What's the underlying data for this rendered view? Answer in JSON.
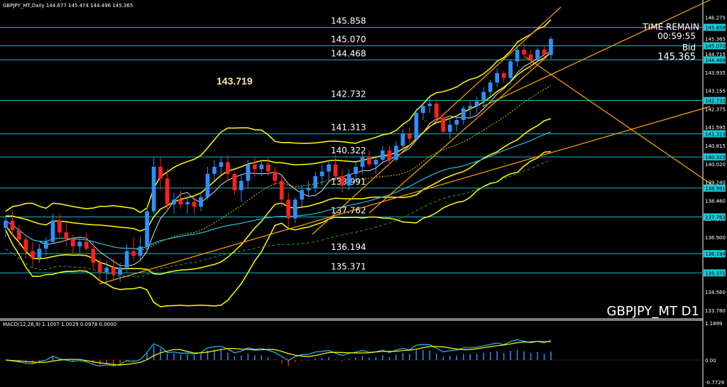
{
  "header": {
    "symbol_line": "GBPJPY_MT,Daily  144.677 145.474 144.496 145.365",
    "macd_line": "MACD(12,26,9) 1.1007 1.0029 0.0978 0.0000"
  },
  "panel": {
    "time_remain_label": "TIME REMAIN",
    "time_remain_value": "00:59:55",
    "bid_label": "Bid",
    "bid_value": "145.365",
    "symbol_period": "GBPJPY_MT D1",
    "highlight_price": "143.719"
  },
  "colors": {
    "level_line": "#17b8c8",
    "axis_box": "#17c9d8",
    "bull": "#2f8fff",
    "bear": "#ff2020",
    "bands": "#ffff00",
    "trend": "#ffa500",
    "ma_cyan": "#20c0e0",
    "ma_green": "#30c040",
    "highlight": "#ffe4b0"
  },
  "chart_data": {
    "type": "candlestick",
    "symbol": "GBPJPY_MT",
    "period": "Daily",
    "ohlc_last": {
      "open": 144.677,
      "high": 145.474,
      "low": 144.496,
      "close": 145.365
    },
    "levels": [
      145.858,
      145.07,
      144.468,
      142.732,
      141.313,
      140.322,
      138.991,
      137.762,
      136.194,
      135.371
    ],
    "level_labels": [
      "145.858",
      "145.070",
      "144.468",
      "142.732",
      "141.313",
      "140.322",
      "138.991",
      "137.762",
      "136.194",
      "135.371"
    ],
    "price_ticks": [
      "146.275",
      "145.365",
      "144.715",
      "143.935",
      "143.155",
      "142.375",
      "141.595",
      "140.815",
      "140.020",
      "139.240",
      "138.460",
      "137.680",
      "136.900",
      "136.120",
      "135.340",
      "134.560",
      "133.780"
    ],
    "level_axis_labels": [
      "145.858",
      "145.070",
      "144.468",
      "142.732",
      "141.313",
      "140.322",
      "138.991",
      "137.762",
      "136.194",
      "135.371"
    ],
    "macd": {
      "params": "12,26,9",
      "values": [
        1.1007,
        1.0029,
        0.0978,
        0.0
      ],
      "ticks": [
        "1.1899",
        "0.00",
        "-0.7729"
      ]
    },
    "ylim": [
      133.5,
      146.6
    ],
    "candles": [
      [
        137.3,
        137.8,
        136.9,
        137.6
      ],
      [
        137.6,
        138.0,
        137.0,
        137.2
      ],
      [
        137.2,
        137.4,
        136.5,
        136.8
      ],
      [
        136.8,
        137.0,
        136.0,
        136.3
      ],
      [
        136.3,
        136.7,
        135.6,
        136.0
      ],
      [
        136.0,
        136.6,
        135.8,
        136.4
      ],
      [
        136.4,
        136.9,
        136.1,
        136.7
      ],
      [
        136.7,
        137.9,
        136.6,
        137.6
      ],
      [
        137.6,
        137.9,
        136.9,
        137.1
      ],
      [
        137.1,
        137.5,
        136.5,
        136.8
      ],
      [
        136.8,
        137.0,
        136.2,
        136.5
      ],
      [
        136.5,
        136.9,
        136.1,
        136.7
      ],
      [
        136.7,
        137.1,
        136.3,
        136.4
      ],
      [
        136.4,
        136.7,
        135.5,
        135.8
      ],
      [
        135.8,
        136.0,
        135.0,
        135.4
      ],
      [
        135.4,
        135.9,
        134.9,
        135.6
      ],
      [
        135.6,
        136.0,
        135.1,
        135.3
      ],
      [
        135.3,
        135.8,
        135.0,
        135.6
      ],
      [
        135.6,
        136.6,
        135.4,
        136.3
      ],
      [
        136.3,
        136.9,
        135.9,
        136.1
      ],
      [
        136.1,
        136.9,
        135.9,
        136.5
      ],
      [
        136.5,
        138.2,
        136.3,
        138.0
      ],
      [
        138.0,
        140.3,
        137.9,
        139.9
      ],
      [
        139.9,
        140.3,
        138.9,
        139.4
      ],
      [
        139.4,
        139.8,
        138.0,
        138.3
      ],
      [
        138.3,
        138.8,
        137.9,
        138.5
      ],
      [
        138.5,
        138.9,
        138.1,
        138.3
      ],
      [
        138.3,
        138.7,
        137.9,
        138.4
      ],
      [
        138.4,
        138.6,
        137.9,
        138.2
      ],
      [
        138.2,
        138.8,
        138.0,
        138.6
      ],
      [
        138.6,
        139.9,
        138.5,
        139.6
      ],
      [
        139.6,
        140.2,
        139.3,
        139.9
      ],
      [
        139.9,
        140.3,
        139.6,
        140.1
      ],
      [
        140.1,
        140.4,
        139.3,
        139.6
      ],
      [
        139.6,
        139.7,
        138.7,
        138.9
      ],
      [
        138.9,
        139.6,
        138.4,
        139.3
      ],
      [
        139.3,
        140.2,
        139.0,
        140.0
      ],
      [
        140.0,
        140.3,
        139.5,
        139.8
      ],
      [
        139.8,
        140.2,
        139.5,
        140.0
      ],
      [
        140.0,
        140.3,
        139.5,
        139.7
      ],
      [
        139.7,
        139.9,
        139.1,
        139.3
      ],
      [
        139.3,
        139.5,
        138.2,
        138.5
      ],
      [
        138.5,
        138.8,
        137.3,
        137.7
      ],
      [
        137.7,
        138.6,
        137.5,
        138.5
      ],
      [
        138.5,
        139.1,
        138.2,
        138.9
      ],
      [
        138.9,
        139.3,
        138.6,
        139.0
      ],
      [
        139.0,
        139.7,
        138.8,
        139.5
      ],
      [
        139.5,
        140.0,
        139.1,
        139.7
      ],
      [
        139.7,
        140.2,
        139.3,
        140.0
      ],
      [
        140.0,
        140.4,
        139.3,
        139.5
      ],
      [
        139.5,
        139.8,
        138.8,
        139.1
      ],
      [
        139.1,
        139.8,
        138.9,
        139.6
      ],
      [
        139.6,
        140.1,
        139.3,
        139.9
      ],
      [
        139.9,
        140.5,
        139.6,
        140.3
      ],
      [
        140.3,
        140.6,
        139.9,
        140.0
      ],
      [
        140.0,
        140.4,
        139.6,
        140.2
      ],
      [
        140.2,
        140.8,
        140.0,
        140.6
      ],
      [
        140.6,
        140.8,
        140.0,
        140.2
      ],
      [
        140.2,
        141.0,
        140.1,
        140.8
      ],
      [
        140.8,
        141.5,
        140.6,
        141.3
      ],
      [
        141.3,
        141.6,
        140.9,
        141.1
      ],
      [
        141.1,
        142.4,
        141.0,
        142.2
      ],
      [
        142.2,
        142.6,
        141.9,
        142.5
      ],
      [
        142.5,
        142.9,
        142.2,
        142.6
      ],
      [
        142.6,
        142.8,
        141.8,
        142.0
      ],
      [
        142.0,
        142.2,
        141.3,
        141.4
      ],
      [
        141.4,
        141.9,
        141.1,
        141.7
      ],
      [
        141.7,
        142.1,
        141.4,
        141.9
      ],
      [
        141.9,
        142.5,
        141.7,
        142.4
      ],
      [
        142.4,
        142.7,
        142.0,
        142.5
      ],
      [
        142.5,
        142.9,
        142.2,
        142.7
      ],
      [
        142.7,
        143.3,
        142.5,
        143.1
      ],
      [
        143.1,
        143.6,
        142.9,
        143.5
      ],
      [
        143.5,
        144.1,
        143.3,
        143.9
      ],
      [
        143.9,
        144.0,
        143.5,
        143.7
      ],
      [
        143.7,
        144.5,
        143.4,
        144.4
      ],
      [
        144.4,
        145.0,
        144.2,
        144.9
      ],
      [
        144.9,
        145.2,
        144.5,
        144.7
      ],
      [
        144.7,
        144.9,
        144.1,
        144.5
      ],
      [
        144.5,
        145.0,
        144.3,
        144.9
      ],
      [
        144.9,
        145.1,
        144.4,
        144.7
      ],
      [
        144.677,
        145.474,
        144.496,
        145.365
      ]
    ]
  }
}
